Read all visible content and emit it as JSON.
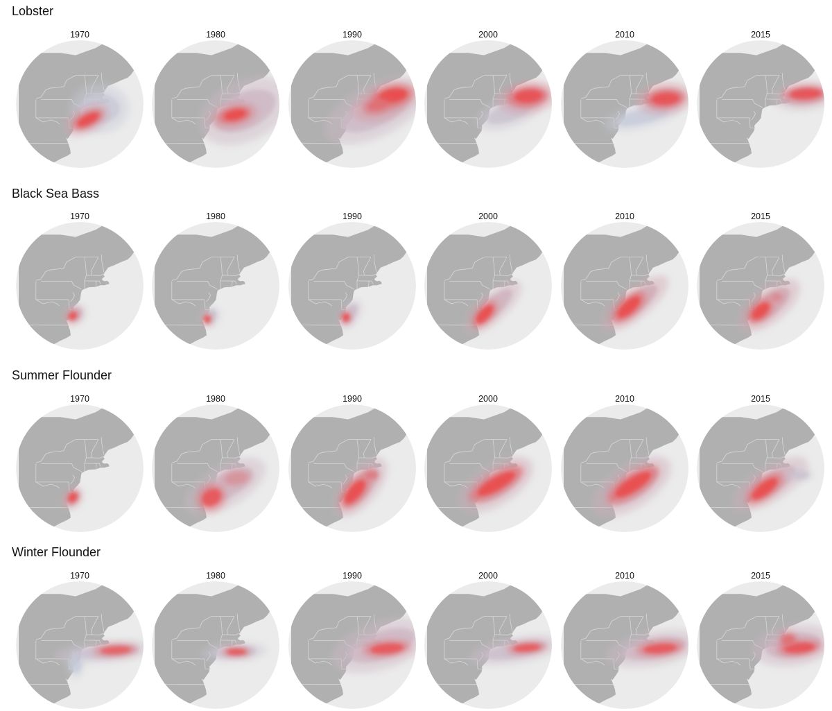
{
  "colors": {
    "ocean": "#ebebeb",
    "land": "#b0b0b0",
    "borders": "#d8d8d8",
    "density_low": "#c5d3e2",
    "density_high": "#ee3a3a"
  },
  "map_shape": "circle",
  "legend": "none",
  "species": [
    {
      "name": "Lobster",
      "panels": [
        {
          "year": "1970",
          "blobs": [
            {
              "lon": -71.3,
              "lat": 40.9,
              "rx": 3.4,
              "ry": 2.3,
              "rot": 0,
              "level": 0.14
            },
            {
              "lon": -73.2,
              "lat": 39.5,
              "rx": 2.9,
              "ry": 1.25,
              "rot": -27,
              "level": 0.4
            },
            {
              "lon": -73.0,
              "lat": 39.5,
              "rx": 2.0,
              "ry": 0.72,
              "rot": -27,
              "level": 0.95
            }
          ]
        },
        {
          "year": "1980",
          "blobs": [
            {
              "lon": -70.0,
              "lat": 40.6,
              "rx": 5.6,
              "ry": 2.8,
              "rot": -25,
              "level": 0.3
            },
            {
              "lon": -71.6,
              "lat": 40.0,
              "rx": 2.9,
              "ry": 1.15,
              "rot": -12,
              "level": 0.55
            },
            {
              "lon": -71.4,
              "lat": 40.1,
              "rx": 1.8,
              "ry": 0.7,
              "rot": -12,
              "level": 0.95
            }
          ]
        },
        {
          "year": "1990",
          "blobs": [
            {
              "lon": -70.8,
              "lat": 40.6,
              "rx": 6.4,
              "ry": 2.4,
              "rot": -26,
              "level": 0.28
            },
            {
              "lon": -69.6,
              "lat": 41.6,
              "rx": 3.9,
              "ry": 1.55,
              "rot": -20,
              "level": 0.5
            },
            {
              "lon": -68.3,
              "lat": 42.5,
              "rx": 2.4,
              "ry": 1.0,
              "rot": -10,
              "level": 0.95
            },
            {
              "lon": -70.6,
              "lat": 41.3,
              "rx": 1.6,
              "ry": 0.75,
              "rot": -15,
              "level": 0.75
            }
          ]
        },
        {
          "year": "2000",
          "blobs": [
            {
              "lon": -71.2,
              "lat": 40.4,
              "rx": 3.9,
              "ry": 1.4,
              "rot": -20,
              "level": 0.2
            },
            {
              "lon": -68.6,
              "lat": 42.2,
              "rx": 3.5,
              "ry": 1.5,
              "rot": -8,
              "level": 0.48
            },
            {
              "lon": -68.4,
              "lat": 42.4,
              "rx": 2.3,
              "ry": 0.95,
              "rot": -5,
              "level": 0.92
            }
          ]
        },
        {
          "year": "2010",
          "blobs": [
            {
              "lon": -71.6,
              "lat": 39.9,
              "rx": 4.6,
              "ry": 1.1,
              "rot": -14,
              "level": 0.12
            },
            {
              "lon": -68.5,
              "lat": 42.1,
              "rx": 3.4,
              "ry": 1.5,
              "rot": -6,
              "level": 0.45
            },
            {
              "lon": -68.3,
              "lat": 42.1,
              "rx": 2.3,
              "ry": 0.9,
              "rot": -4,
              "level": 0.92
            }
          ]
        },
        {
          "year": "2015",
          "blobs": [
            {
              "lon": -68.0,
              "lat": 42.4,
              "rx": 3.7,
              "ry": 1.3,
              "rot": -5,
              "level": 0.3
            },
            {
              "lon": -67.7,
              "lat": 42.7,
              "rx": 2.7,
              "ry": 0.8,
              "rot": -3,
              "level": 0.92
            }
          ]
        }
      ]
    },
    {
      "name": "Black Sea Bass",
      "panels": [
        {
          "year": "1970",
          "blobs": [
            {
              "lon": -74.9,
              "lat": 37.9,
              "rx": 1.4,
              "ry": 0.95,
              "rot": -40,
              "level": 0.3
            },
            {
              "lon": -75.2,
              "lat": 37.7,
              "rx": 0.75,
              "ry": 0.5,
              "rot": -40,
              "level": 0.95
            }
          ]
        },
        {
          "year": "1980",
          "blobs": [
            {
              "lon": -75.0,
              "lat": 37.6,
              "rx": 1.3,
              "ry": 0.9,
              "rot": -50,
              "level": 0.2
            },
            {
              "lon": -75.4,
              "lat": 37.3,
              "rx": 0.5,
              "ry": 0.55,
              "rot": 0,
              "level": 0.95
            }
          ]
        },
        {
          "year": "1990",
          "blobs": [
            {
              "lon": -74.6,
              "lat": 37.9,
              "rx": 1.9,
              "ry": 0.9,
              "rot": -55,
              "level": 0.25
            },
            {
              "lon": -75.1,
              "lat": 37.5,
              "rx": 0.6,
              "ry": 0.6,
              "rot": 0,
              "level": 0.95
            }
          ]
        },
        {
          "year": "2000",
          "blobs": [
            {
              "lon": -73.5,
              "lat": 38.8,
              "rx": 4.2,
              "ry": 1.3,
              "rot": -42,
              "level": 0.35
            },
            {
              "lon": -74.7,
              "lat": 37.9,
              "rx": 1.9,
              "ry": 0.75,
              "rot": -48,
              "level": 0.95
            }
          ]
        },
        {
          "year": "2010",
          "blobs": [
            {
              "lon": -72.8,
              "lat": 39.2,
              "rx": 4.8,
              "ry": 1.4,
              "rot": -38,
              "level": 0.4
            },
            {
              "lon": -73.6,
              "lat": 38.8,
              "rx": 2.4,
              "ry": 0.9,
              "rot": -42,
              "level": 0.95
            }
          ]
        },
        {
          "year": "2015",
          "blobs": [
            {
              "lon": -73.0,
              "lat": 39.0,
              "rx": 4.3,
              "ry": 1.6,
              "rot": -38,
              "level": 0.4
            },
            {
              "lon": -74.2,
              "lat": 38.3,
              "rx": 1.8,
              "ry": 0.85,
              "rot": -42,
              "level": 0.95
            },
            {
              "lon": -71.9,
              "lat": 40.0,
              "rx": 0.9,
              "ry": 0.55,
              "rot": 0,
              "level": 0.6
            }
          ]
        }
      ]
    },
    {
      "name": "Summer Flounder",
      "panels": [
        {
          "year": "1970",
          "blobs": [
            {
              "lon": -75.3,
              "lat": 37.7,
              "rx": 1.5,
              "ry": 0.85,
              "rot": -50,
              "level": 0.35
            },
            {
              "lon": -75.2,
              "lat": 37.8,
              "rx": 0.85,
              "ry": 0.55,
              "rot": -50,
              "level": 0.95
            }
          ]
        },
        {
          "year": "1980",
          "blobs": [
            {
              "lon": -72.8,
              "lat": 39.2,
              "rx": 5.2,
              "ry": 1.9,
              "rot": -30,
              "level": 0.3
            },
            {
              "lon": -74.8,
              "lat": 37.8,
              "rx": 1.7,
              "ry": 1.2,
              "rot": -35,
              "level": 0.9
            },
            {
              "lon": -71.2,
              "lat": 40.2,
              "rx": 1.9,
              "ry": 0.9,
              "rot": -10,
              "level": 0.55
            }
          ]
        },
        {
          "year": "1990",
          "blobs": [
            {
              "lon": -73.0,
              "lat": 39.1,
              "rx": 4.2,
              "ry": 1.6,
              "rot": -50,
              "level": 0.35
            },
            {
              "lon": -73.8,
              "lat": 38.5,
              "rx": 2.4,
              "ry": 0.95,
              "rot": -50,
              "level": 0.95
            },
            {
              "lon": -71.4,
              "lat": 40.6,
              "rx": 1.0,
              "ry": 0.6,
              "rot": 0,
              "level": 0.7
            }
          ]
        },
        {
          "year": "2000",
          "blobs": [
            {
              "lon": -73.1,
              "lat": 39.4,
              "rx": 4.9,
              "ry": 1.9,
              "rot": -32,
              "level": 0.35
            },
            {
              "lon": -73.0,
              "lat": 39.5,
              "rx": 3.6,
              "ry": 1.0,
              "rot": -30,
              "level": 0.95
            }
          ]
        },
        {
          "year": "2010",
          "blobs": [
            {
              "lon": -73.2,
              "lat": 39.2,
              "rx": 5.2,
              "ry": 2.0,
              "rot": -33,
              "level": 0.35
            },
            {
              "lon": -73.0,
              "lat": 39.4,
              "rx": 3.5,
              "ry": 1.05,
              "rot": -33,
              "level": 0.95
            }
          ]
        },
        {
          "year": "2015",
          "blobs": [
            {
              "lon": -72.8,
              "lat": 39.5,
              "rx": 5.0,
              "ry": 1.6,
              "rot": -32,
              "level": 0.35
            },
            {
              "lon": -73.6,
              "lat": 38.9,
              "rx": 2.6,
              "ry": 0.9,
              "rot": -38,
              "level": 0.95
            },
            {
              "lon": -68.5,
              "lat": 40.6,
              "rx": 1.5,
              "ry": 0.6,
              "rot": 0,
              "level": 0.2
            }
          ]
        }
      ]
    },
    {
      "name": "Winter Flounder",
      "panels": [
        {
          "year": "1970",
          "blobs": [
            {
              "lon": -70.6,
              "lat": 40.6,
              "rx": 5.8,
              "ry": 1.0,
              "rot": -5,
              "level": 0.22
            },
            {
              "lon": -69.0,
              "lat": 40.8,
              "rx": 2.6,
              "ry": 0.6,
              "rot": -3,
              "level": 0.85
            },
            {
              "lon": -74.8,
              "lat": 39.0,
              "rx": 1.0,
              "ry": 1.3,
              "rot": 0,
              "level": 0.12
            }
          ]
        },
        {
          "year": "1980",
          "blobs": [
            {
              "lon": -71.5,
              "lat": 40.6,
              "rx": 3.8,
              "ry": 0.9,
              "rot": -3,
              "level": 0.2
            },
            {
              "lon": -71.2,
              "lat": 40.6,
              "rx": 1.7,
              "ry": 0.45,
              "rot": 0,
              "level": 0.92
            }
          ]
        },
        {
          "year": "1990",
          "blobs": [
            {
              "lon": -70.0,
              "lat": 41.4,
              "rx": 6.0,
              "ry": 2.2,
              "rot": -18,
              "level": 0.3
            },
            {
              "lon": -69.2,
              "lat": 41.0,
              "rx": 2.8,
              "ry": 0.75,
              "rot": -5,
              "level": 0.9
            }
          ]
        },
        {
          "year": "2000",
          "blobs": [
            {
              "lon": -70.2,
              "lat": 40.8,
              "rx": 5.4,
              "ry": 1.2,
              "rot": -10,
              "level": 0.25
            },
            {
              "lon": -68.6,
              "lat": 41.1,
              "rx": 2.3,
              "ry": 0.55,
              "rot": -5,
              "level": 0.9
            }
          ]
        },
        {
          "year": "2010",
          "blobs": [
            {
              "lon": -70.0,
              "lat": 41.0,
              "rx": 5.6,
              "ry": 1.6,
              "rot": -10,
              "level": 0.3
            },
            {
              "lon": -69.1,
              "lat": 41.0,
              "rx": 2.8,
              "ry": 0.7,
              "rot": -5,
              "level": 0.9
            }
          ]
        },
        {
          "year": "2015",
          "blobs": [
            {
              "lon": -69.5,
              "lat": 41.4,
              "rx": 4.8,
              "ry": 1.9,
              "rot": -8,
              "level": 0.32
            },
            {
              "lon": -68.6,
              "lat": 41.1,
              "rx": 2.6,
              "ry": 0.75,
              "rot": -5,
              "level": 0.92
            },
            {
              "lon": -70.2,
              "lat": 42.1,
              "rx": 1.1,
              "ry": 0.8,
              "rot": 0,
              "level": 0.75
            }
          ]
        }
      ]
    }
  ]
}
